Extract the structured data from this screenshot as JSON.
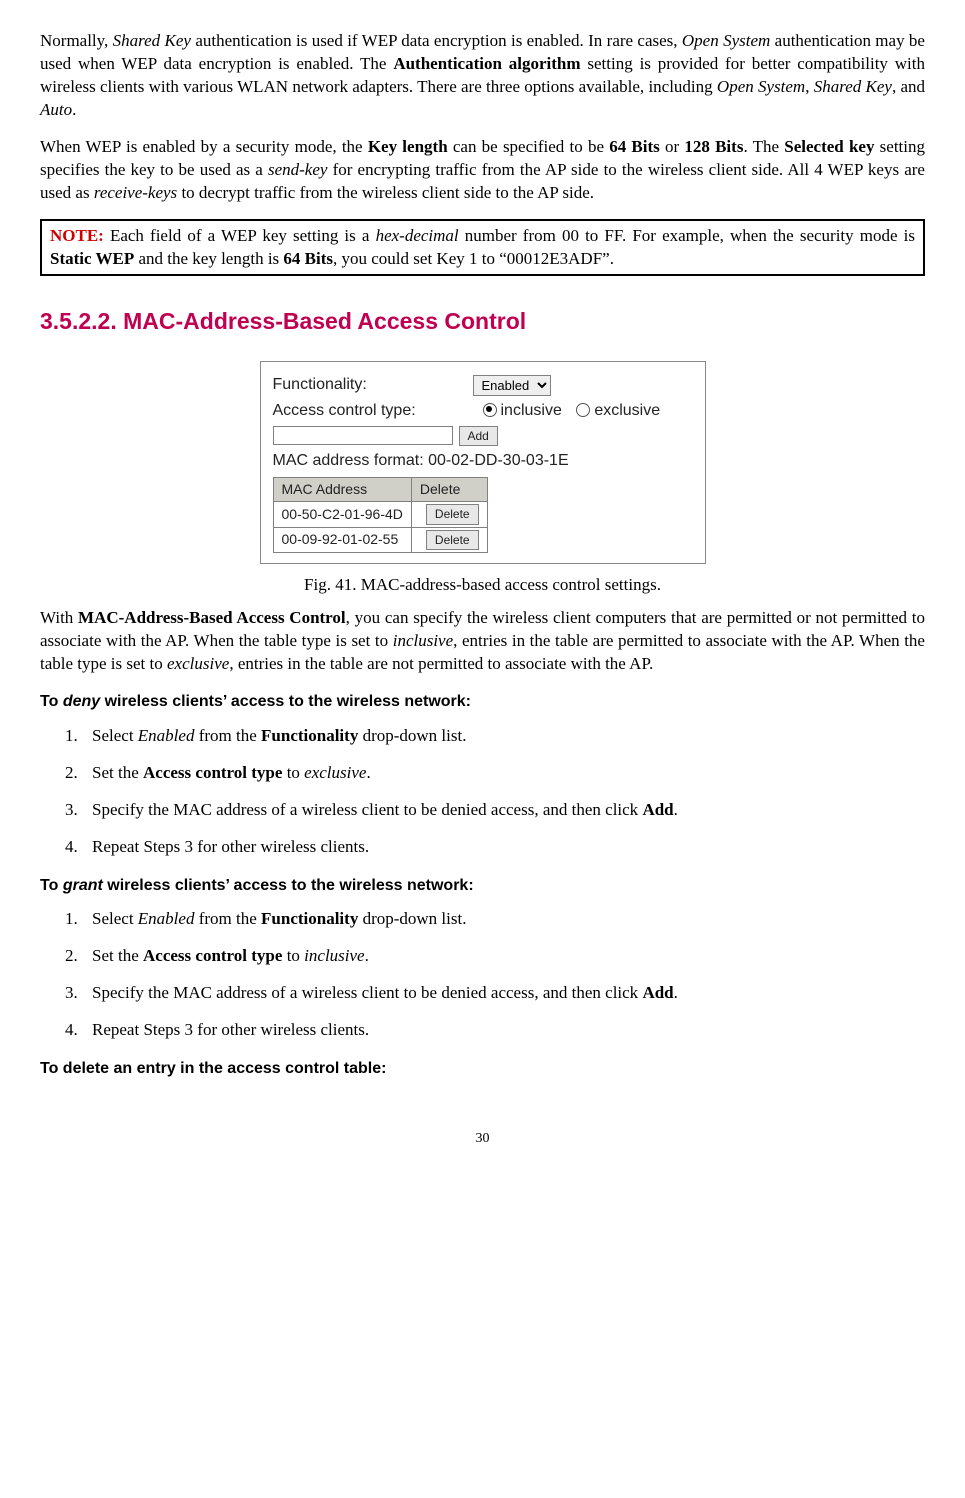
{
  "para1": {
    "pre": "Normally, ",
    "i1": "Shared Key",
    "t1": " authentication is used if WEP data encryption is enabled. In rare cases, ",
    "i2": "Open System",
    "t2": " authentication may be used when WEP data encryption is enabled. The ",
    "b1": "Authentication algorithm",
    "t3": " setting is provided for better compatibility with wireless clients with various WLAN network adapters. There are three options available, including ",
    "i3": "Open System",
    "comma1": ", ",
    "i4": "Shared Key",
    "comma2": ", and ",
    "i5": "Auto",
    "dot": "."
  },
  "para2": {
    "t0": "When WEP is enabled by a security mode, the ",
    "b1": "Key length",
    "t1": " can be specified to be ",
    "b2": "64 Bits",
    "t2": " or ",
    "b3": "128 Bits",
    "t3": ". The ",
    "b4": "Selected key",
    "t4": " setting specifies the key to be used as a ",
    "i1": "send-key",
    "t5": " for encrypting traffic from the AP side to the wireless client side. All 4 WEP keys are used as ",
    "i2": "receive-keys",
    "t6": " to decrypt traffic from the wireless client side to the AP side."
  },
  "note": {
    "label": "NOTE:",
    "t0": " Each field of a WEP key setting is a ",
    "i1": "hex-decimal",
    "t1": " number from 00 to FF. For example, when the security mode is ",
    "b1": "Static WEP",
    "t2": " and the key length is ",
    "b2": "64 Bits",
    "t3": ", you could set Key 1 to “00012E3ADF”."
  },
  "section_heading": "3.5.2.2. MAC-Address-Based Access Control",
  "figure": {
    "functionality_label": "Functionality:",
    "functionality_value": "Enabled",
    "access_type_label": "Access control type:",
    "radio_inclusive": "inclusive",
    "radio_exclusive": "exclusive",
    "add_btn": "Add",
    "mac_format": "MAC address format: 00-02-DD-30-03-1E",
    "col_mac": "MAC Address",
    "col_del": "Delete",
    "rows": [
      {
        "mac": "00-50-C2-01-96-4D",
        "btn": "Delete"
      },
      {
        "mac": "00-09-92-01-02-55",
        "btn": "Delete"
      }
    ]
  },
  "caption": "Fig. 41. MAC-address-based access control settings.",
  "para3": {
    "t0": "With ",
    "b1": "MAC-Address-Based Access Control",
    "t1": ", you can specify the wireless client computers that are permitted or not permitted to associate with the AP. When the table type is set to ",
    "i1": "inclusive",
    "t2": ", entries in the table are permitted to associate with the AP. When the table type is set to ",
    "i2": "exclusive",
    "t3": ", entries in the table are not permitted to associate with the AP."
  },
  "deny_head": {
    "pre": "To ",
    "em": "deny",
    "post": " wireless clients’ access to the wireless network:"
  },
  "grant_head": {
    "pre": "To ",
    "em": "grant",
    "post": " wireless clients’ access to the wireless network:"
  },
  "delete_head": "To delete an entry in the access control table:",
  "deny_steps": {
    "s1": {
      "a": "Select ",
      "i": "Enabled",
      "b": " from the ",
      "bold": "Functionality",
      "c": " drop-down list."
    },
    "s2": {
      "a": "Set the ",
      "bold": "Access control type",
      "b": " to ",
      "i": "exclusive",
      "c": "."
    },
    "s3": {
      "a": "Specify the MAC address of a wireless client to be denied access, and then click ",
      "bold": "Add",
      "b": "."
    },
    "s4": "Repeat Steps 3 for other wireless clients."
  },
  "grant_steps": {
    "s1": {
      "a": "Select ",
      "i": "Enabled",
      "b": " from the ",
      "bold": "Functionality",
      "c": " drop-down list."
    },
    "s2": {
      "a": "Set the ",
      "bold": "Access control type",
      "b": " to ",
      "i": "inclusive",
      "c": "."
    },
    "s3": {
      "a": "Specify the MAC address of a wireless client to be denied access, and then click ",
      "bold": "Add",
      "b": "."
    },
    "s4": "Repeat Steps 3 for other wireless clients."
  },
  "page_number": "30"
}
